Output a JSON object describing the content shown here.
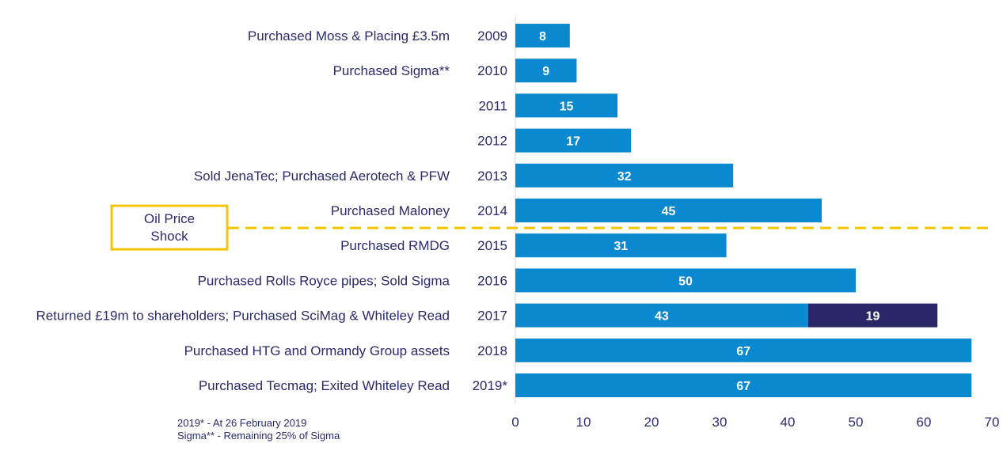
{
  "chart_data": {
    "type": "bar",
    "orientation": "horizontal",
    "categories": [
      "2009",
      "2010",
      "2011",
      "2012",
      "2013",
      "2014",
      "2015",
      "2016",
      "2017",
      "2018",
      "2019*"
    ],
    "series": [
      {
        "values": [
          8,
          9,
          15,
          17,
          32,
          45,
          31,
          50,
          43,
          67,
          67
        ],
        "color": "#0a88d0"
      },
      {
        "values": [
          0,
          0,
          0,
          0,
          0,
          0,
          0,
          0,
          19,
          0,
          0
        ],
        "color": "#2b2767"
      }
    ],
    "annotations": [
      "Purchased Moss & Placing £3.5m",
      "Purchased Sigma**",
      "",
      "",
      "Sold JenaTec; Purchased Aerotech & PFW",
      "Purchased Maloney",
      "Purchased RMDG",
      "Purchased Rolls Royce pipes; Sold Sigma",
      "Returned £19m to shareholders; Purchased SciMag & Whiteley Read",
      "Purchased HTG and Ormandy Group assets",
      "Purchased Tecmag; Exited Whiteley Read"
    ],
    "xlim": [
      0,
      70
    ],
    "xticks": [
      "0",
      "10",
      "20",
      "30",
      "40",
      "50",
      "60",
      "70"
    ],
    "grid": false,
    "oil_price_shock": {
      "label_line1": "Oil Price",
      "label_line2": "Shock",
      "between_categories": [
        "2014",
        "2015"
      ],
      "color": "#f5c400"
    }
  },
  "footnotes": [
    "2019* -  At 26 February 2019",
    "Sigma** - Remaining 25% of Sigma"
  ]
}
